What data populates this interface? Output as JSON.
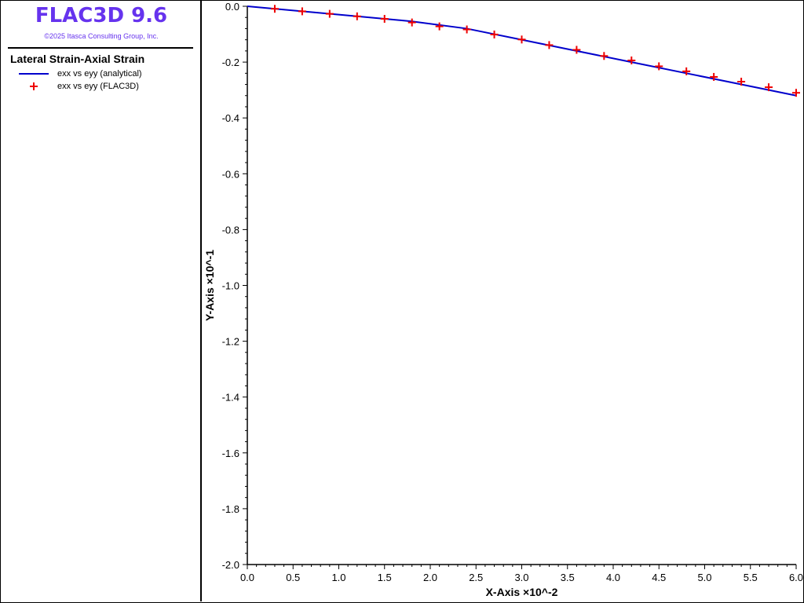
{
  "app": {
    "title": "FLAC3D 9.6",
    "copyright": "©2025 Itasca Consulting Group, Inc."
  },
  "legend": {
    "title": "Lateral Strain-Axial Strain",
    "items": [
      {
        "label": "exx vs eyy (analytical)",
        "color": "#0000cc",
        "style": "line"
      },
      {
        "label": "exx vs eyy (FLAC3D)",
        "color": "#ee0000",
        "style": "cross"
      }
    ]
  },
  "chart_data": {
    "type": "line",
    "xlabel": "X-Axis ×10^-2",
    "ylabel": "Y-Axis ×10^-1",
    "xlim": [
      0.0,
      6.0
    ],
    "ylim": [
      -2.0,
      0.0
    ],
    "x_ticks": [
      "0.0",
      "0.5",
      "1.0",
      "1.5",
      "2.0",
      "2.5",
      "3.0",
      "3.5",
      "4.0",
      "4.5",
      "5.0",
      "5.5",
      "6.0"
    ],
    "y_ticks": [
      "0.0",
      "-0.2",
      "-0.4",
      "-0.6",
      "-0.8",
      "-1.0",
      "-1.2",
      "-1.4",
      "-1.6",
      "-1.8",
      "-2.0"
    ],
    "grid": false,
    "legend_position": "left-panel",
    "series": [
      {
        "name": "exx vs eyy (analytical)",
        "style": "line",
        "color": "#0000cc",
        "x": [
          0.0,
          0.6,
          1.2,
          1.8,
          2.4,
          3.0,
          3.6,
          4.2,
          4.8,
          5.4,
          6.0
        ],
        "y": [
          0.0,
          -0.018,
          -0.036,
          -0.054,
          -0.08,
          -0.12,
          -0.16,
          -0.2,
          -0.24,
          -0.28,
          -0.32
        ]
      },
      {
        "name": "exx vs eyy (FLAC3D)",
        "style": "cross",
        "color": "#ee0000",
        "x": [
          0.3,
          0.6,
          0.9,
          1.2,
          1.5,
          1.8,
          2.1,
          2.4,
          2.7,
          3.0,
          3.3,
          3.6,
          3.9,
          4.2,
          4.5,
          4.8,
          5.1,
          5.4,
          5.7,
          6.0
        ],
        "y": [
          -0.009,
          -0.018,
          -0.027,
          -0.036,
          -0.045,
          -0.058,
          -0.072,
          -0.083,
          -0.101,
          -0.119,
          -0.139,
          -0.156,
          -0.178,
          -0.194,
          -0.215,
          -0.233,
          -0.253,
          -0.27,
          -0.29,
          -0.31
        ]
      }
    ]
  }
}
